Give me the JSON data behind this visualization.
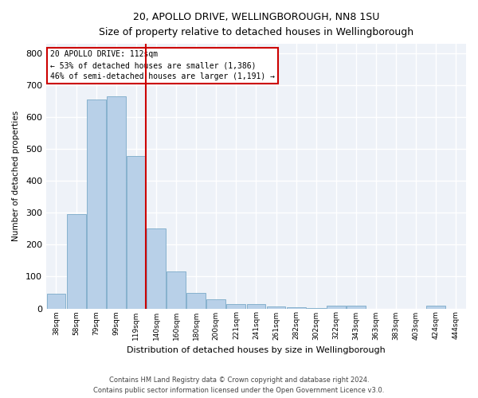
{
  "title": "20, APOLLO DRIVE, WELLINGBOROUGH, NN8 1SU",
  "subtitle": "Size of property relative to detached houses in Wellingborough",
  "xlabel": "Distribution of detached houses by size in Wellingborough",
  "ylabel": "Number of detached properties",
  "bar_color": "#b8d0e8",
  "bar_edge_color": "#7aaac8",
  "bg_color": "#eef2f8",
  "grid_color": "#ffffff",
  "categories": [
    "38sqm",
    "58sqm",
    "79sqm",
    "99sqm",
    "119sqm",
    "140sqm",
    "160sqm",
    "180sqm",
    "200sqm",
    "221sqm",
    "241sqm",
    "261sqm",
    "282sqm",
    "302sqm",
    "322sqm",
    "343sqm",
    "363sqm",
    "383sqm",
    "403sqm",
    "424sqm",
    "444sqm"
  ],
  "values": [
    47,
    295,
    655,
    665,
    477,
    252,
    115,
    49,
    29,
    14,
    13,
    7,
    5,
    2,
    10,
    10,
    0,
    0,
    0,
    8,
    0
  ],
  "property_line_color": "#cc0000",
  "annotation_title": "20 APOLLO DRIVE: 112sqm",
  "annotation_line1": "← 53% of detached houses are smaller (1,386)",
  "annotation_line2": "46% of semi-detached houses are larger (1,191) →",
  "annotation_box_color": "#cc0000",
  "ylim": [
    0,
    830
  ],
  "yticks": [
    0,
    100,
    200,
    300,
    400,
    500,
    600,
    700,
    800
  ],
  "footer_line1": "Contains HM Land Registry data © Crown copyright and database right 2024.",
  "footer_line2": "Contains public sector information licensed under the Open Government Licence v3.0."
}
